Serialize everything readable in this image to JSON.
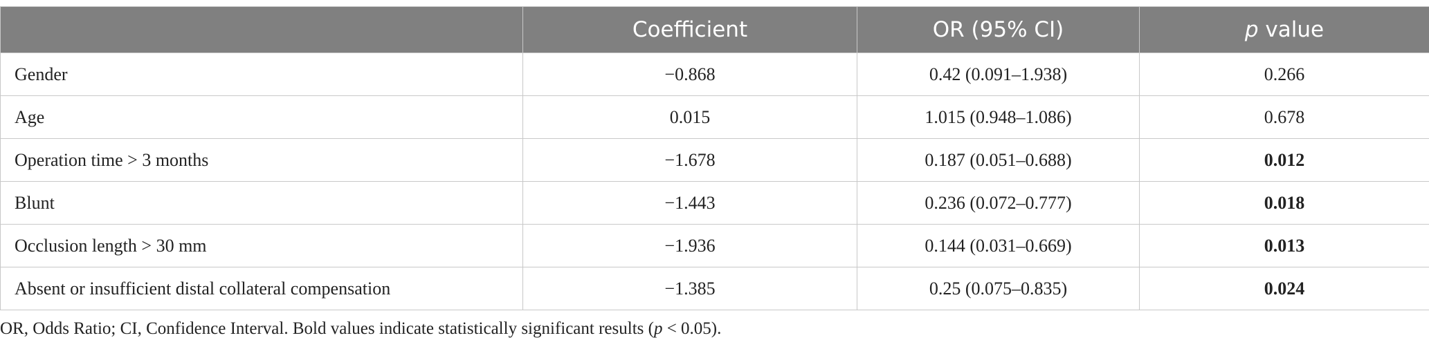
{
  "table": {
    "header": {
      "coefficient": "Coefficient",
      "or": "OR (95% CI)",
      "p_italic": "p",
      "p_rest": " value"
    },
    "rows": [
      [
        "Gender",
        "−0.868",
        "0.42 (0.091–1.938)",
        "0.266"
      ],
      [
        "Age",
        "0.015",
        "1.015 (0.948–1.086)",
        "0.678"
      ],
      [
        "Operation time > 3 months",
        "−1.678",
        "0.187 (0.051–0.688)",
        "0.012"
      ],
      [
        "Blunt",
        "−1.443",
        "0.236 (0.072–0.777)",
        "0.018"
      ],
      [
        "Occlusion length > 30 mm",
        "−1.936",
        "0.144 (0.031–0.669)",
        "0.013"
      ],
      [
        "Absent or insufficient distal collateral compensation",
        "−1.385",
        "0.25 (0.075–0.835)",
        "0.024"
      ]
    ]
  },
  "footnote": {
    "before": "OR, Odds Ratio; CI, Confidence Interval. Bold values indicate statistically significant results (",
    "italic": "p",
    "after": " < 0.05)."
  }
}
